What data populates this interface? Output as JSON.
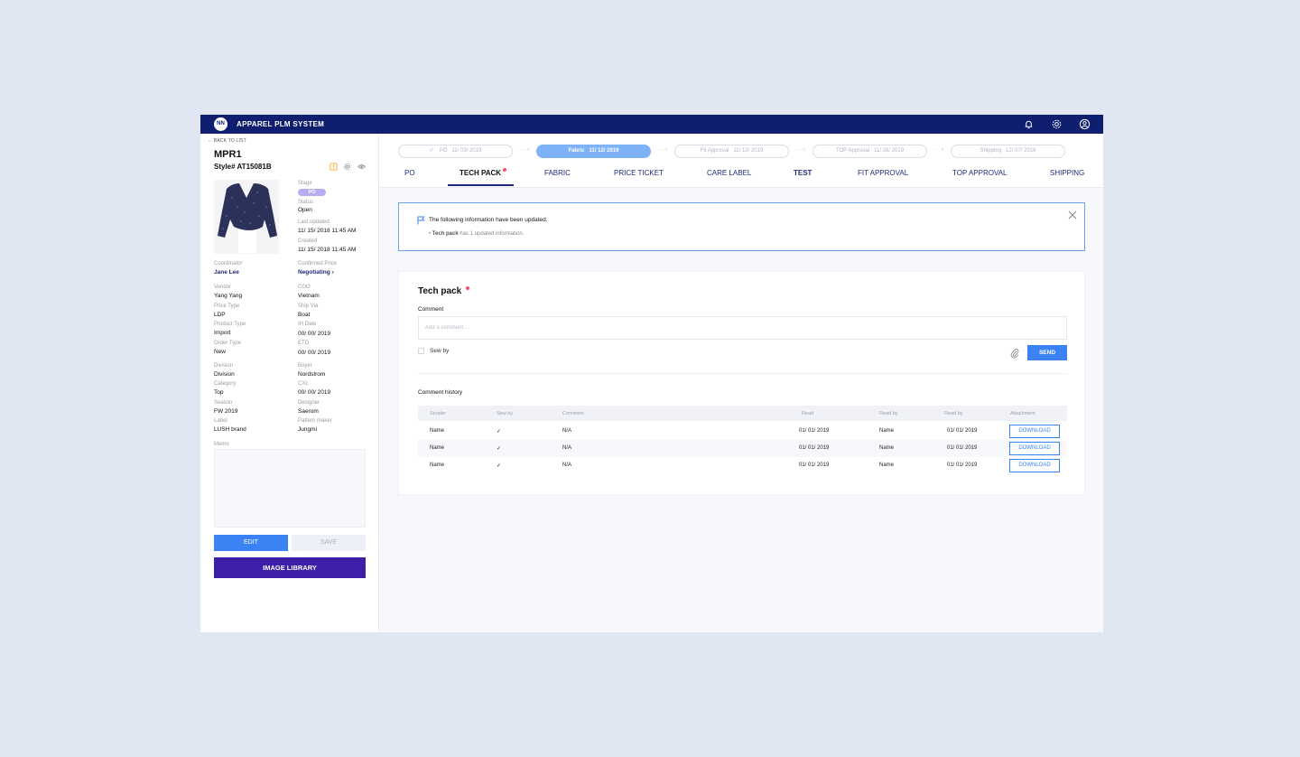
{
  "header": {
    "logo": "NN",
    "title": "APPAREL PLM SYSTEM"
  },
  "left": {
    "back": "BACK TO LIST",
    "name": "MPR1",
    "style": "Style# AT15081B",
    "stage": {
      "label": "Stage",
      "badge": "PO"
    },
    "status": {
      "label": "Status",
      "value": "Open"
    },
    "last_updated": {
      "label": "Last updated",
      "value": "11/ 15/ 2018 11:45 AM"
    },
    "created": {
      "label": "Created",
      "value": "11/ 15/ 2018 11:45 AM"
    },
    "coordinator": {
      "label": "Coordinator",
      "value": "Jane Lee"
    },
    "confirmed_price": {
      "label": "Confirmed Price",
      "value": "Negotiating",
      "chevron": "›"
    },
    "vendor": {
      "label": "Vendor",
      "value": "Yang Yang"
    },
    "coo": {
      "label": "COO",
      "value": "Vietnam"
    },
    "price_type": {
      "label": "Price Type",
      "value": "LDP"
    },
    "ship_via": {
      "label": "Ship Via",
      "value": "Boat"
    },
    "product_type": {
      "label": "Product Type",
      "value": "Import"
    },
    "ih_date": {
      "label": "IH Date",
      "value": "00/ 00/ 2019"
    },
    "order_type": {
      "label": "Order Type",
      "value": "New"
    },
    "etd": {
      "label": "ETD",
      "value": "00/ 00/ 2019"
    },
    "division": {
      "label": "Division",
      "value": "Division"
    },
    "buyer": {
      "label": "Buyer",
      "value": "Nordstrom"
    },
    "category": {
      "label": "Category",
      "value": "Top"
    },
    "cxl": {
      "label": "CXL",
      "value": "00/ 00/ 2019"
    },
    "season": {
      "label": "Season",
      "value": "FW 2019"
    },
    "designer": {
      "label": "Designer",
      "value": "Saerom"
    },
    "label_field": {
      "label": "Label",
      "value": "LUSH brand"
    },
    "pattern_maker": {
      "label": "Pattern maker",
      "value": "Jungmi"
    },
    "memo_label": "Memo",
    "edit": "EDIT",
    "save": "SAVE",
    "image_library": "IMAGE LIBRARY"
  },
  "steps": [
    {
      "check": "✓",
      "name": "PO",
      "date": "11/ 03/ 2019"
    },
    {
      "name": "Fabric",
      "date": "11/ 12/ 2019"
    },
    {
      "name": "Fit Approval",
      "date": "11/ 13/ 2019"
    },
    {
      "name": "TOP Approval",
      "date": "11/ 28/ 2019"
    },
    {
      "name": "Shipping",
      "date": "12/ 07/ 2019"
    }
  ],
  "step_arrow": "···›",
  "tabs": [
    "PO",
    "TECH PACK",
    "FABRIC",
    "PRICE TICKET",
    "CARE LABEL",
    "TEST",
    "FIT APPROVAL",
    "TOP APPROVAL",
    "SHIPPING"
  ],
  "notice": {
    "title": "The following information have been updated.",
    "bullet": "•",
    "item_bold": "Tech pack",
    "item_rest": " has 1 updated information."
  },
  "card": {
    "title": "Tech pack",
    "comment_label": "Comment",
    "comment_placeholder": "Add a comment...",
    "sew_by": "Sew by",
    "send": "SEND",
    "history_label": "Comment history",
    "columns": [
      "Sender",
      "Sew by",
      "Comment",
      "Read",
      "Read by",
      "Read by",
      "Attachment"
    ],
    "rows": [
      {
        "sender": "Name",
        "sew": "✓",
        "comment": "N/A",
        "read": "01/ 01/ 2019",
        "read_by": "Name",
        "read_by2": "01/ 01/ 2019",
        "attachment": "DOWNLOAD"
      },
      {
        "sender": "Name",
        "sew": "✓",
        "comment": "N/A",
        "read": "01/ 01/ 2019",
        "read_by": "Name",
        "read_by2": "01/ 01/ 2019",
        "attachment": "DOWNLOAD"
      },
      {
        "sender": "Name",
        "sew": "✓",
        "comment": "N/A",
        "read": "01/ 01/ 2019",
        "read_by": "Name",
        "read_by2": "01/ 01/ 2019",
        "attachment": "DOWNLOAD"
      }
    ]
  },
  "icons": [
    "bell-icon",
    "gear-icon",
    "user-icon",
    "alert-icon",
    "settings-icon",
    "eye-icon",
    "flag-icon",
    "close-icon",
    "paperclip-icon",
    "chat-icon"
  ],
  "colors": {
    "navy": "#0f1e6e",
    "blue": "#3b83f5",
    "purple": "#3d1fa8",
    "badge": "#b8adf0",
    "dot": "#ff4d6d"
  }
}
